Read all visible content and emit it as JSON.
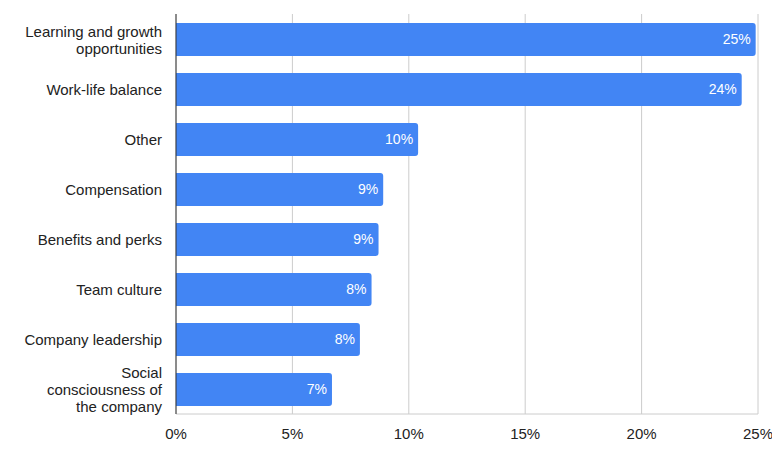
{
  "chart_data": {
    "type": "bar",
    "orientation": "horizontal",
    "categories": [
      "Learning and growth opportunities",
      "Work-life balance",
      "Other",
      "Compensation",
      "Benefits and perks",
      "Team culture",
      "Company leadership",
      "Social consciousness of the company"
    ],
    "values": [
      24.9,
      24.3,
      10.4,
      8.9,
      8.7,
      8.4,
      7.9,
      6.7
    ],
    "value_labels": [
      "25%",
      "24%",
      "10%",
      "9%",
      "9%",
      "8%",
      "8%",
      "7%"
    ],
    "data_labels": true,
    "color": "#4285f4",
    "xlim": [
      0,
      25
    ],
    "xticks": [
      {
        "value": 0,
        "label": "0%"
      },
      {
        "value": 5,
        "label": "5%"
      },
      {
        "value": 10,
        "label": "10%"
      },
      {
        "value": 15,
        "label": "15%"
      },
      {
        "value": 20,
        "label": "20%"
      },
      {
        "value": 25,
        "label": "25%"
      }
    ],
    "grid": true
  }
}
